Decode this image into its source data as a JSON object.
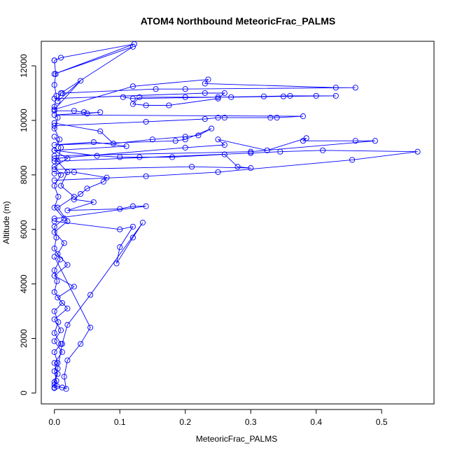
{
  "chart_data": {
    "type": "line",
    "title": "ATOM4 Northbound MeteoricFrac_PALMS",
    "xlabel": "MeteoricFrac_PALMS",
    "ylabel": "Altitude (m)",
    "xlim": [
      -0.02,
      0.58
    ],
    "ylim": [
      -400,
      12900
    ],
    "xticks": [
      0.0,
      0.1,
      0.2,
      0.3,
      0.4,
      0.5
    ],
    "xtick_labels": [
      "0.0",
      "0.1",
      "0.2",
      "0.3",
      "0.4",
      "0.5"
    ],
    "yticks": [
      0,
      2000,
      4000,
      6000,
      8000,
      10000,
      12000
    ],
    "ytick_labels": [
      "0",
      "2000",
      "4000",
      "6000",
      "8000",
      "10000",
      "12000"
    ],
    "grid": false,
    "color": "#0000ff",
    "marker": "open-circle",
    "series": [
      {
        "points": [
          [
            0.0,
            200
          ],
          [
            0.003,
            450
          ],
          [
            0.0,
            800
          ],
          [
            0.005,
            1100
          ],
          [
            0.0,
            1500
          ],
          [
            0.01,
            1800
          ],
          [
            0.0,
            2200
          ],
          [
            0.006,
            2600
          ],
          [
            0.0,
            3000
          ],
          [
            0.012,
            3300
          ],
          [
            0.0,
            3700
          ],
          [
            0.004,
            4100
          ],
          [
            0.0,
            4500
          ],
          [
            0.009,
            4900
          ],
          [
            0.0,
            5300
          ],
          [
            0.003,
            5700
          ],
          [
            0.0,
            6100
          ],
          [
            0.015,
            6400
          ],
          [
            0.0,
            6800
          ],
          [
            0.006,
            7200
          ],
          [
            0.0,
            7600
          ],
          [
            0.01,
            8000
          ],
          [
            0.0,
            8300
          ],
          [
            0.02,
            8600
          ],
          [
            0.0,
            8900
          ],
          [
            0.008,
            9300
          ],
          [
            0.0,
            9700
          ],
          [
            0.005,
            10100
          ],
          [
            0.0,
            10500
          ],
          [
            0.003,
            10900
          ],
          [
            0.0,
            11300
          ],
          [
            0.002,
            11700
          ],
          [
            0.0,
            12200
          ]
        ]
      },
      {
        "points": [
          [
            0.0,
            12200
          ],
          [
            0.01,
            12300
          ],
          [
            0.122,
            12800
          ],
          [
            0.0,
            11700
          ],
          [
            0.12,
            12700
          ],
          [
            0.01,
            11000
          ],
          [
            0.005,
            10700
          ],
          [
            0.04,
            11450
          ],
          [
            0.0,
            10400
          ],
          [
            0.12,
            11250
          ],
          [
            0.235,
            11500
          ],
          [
            0.23,
            11350
          ],
          [
            0.43,
            11200
          ],
          [
            0.46,
            11200
          ],
          [
            0.2,
            11150
          ],
          [
            0.155,
            11150
          ],
          [
            0.012,
            11000
          ]
        ]
      },
      {
        "points": [
          [
            0.105,
            10850
          ],
          [
            0.12,
            10800
          ],
          [
            0.25,
            10850
          ],
          [
            0.32,
            10880
          ],
          [
            0.36,
            10900
          ],
          [
            0.4,
            10900
          ],
          [
            0.43,
            10900
          ],
          [
            0.35,
            10880
          ],
          [
            0.27,
            10850
          ],
          [
            0.2,
            10850
          ],
          [
            0.13,
            10850
          ],
          [
            0.12,
            10600
          ],
          [
            0.14,
            10550
          ],
          [
            0.175,
            10550
          ],
          [
            0.25,
            10800
          ],
          [
            0.26,
            11000
          ],
          [
            0.23,
            11000
          ],
          [
            0.0,
            10800
          ]
        ]
      },
      {
        "points": [
          [
            0.0,
            10350
          ],
          [
            0.03,
            10350
          ],
          [
            0.045,
            10300
          ],
          [
            0.05,
            10250
          ],
          [
            0.07,
            10300
          ],
          [
            0.0,
            10200
          ],
          [
            0.38,
            10150
          ],
          [
            0.34,
            10100
          ],
          [
            0.33,
            10100
          ],
          [
            0.26,
            10100
          ],
          [
            0.25,
            10100
          ],
          [
            0.23,
            10050
          ],
          [
            0.14,
            9950
          ],
          [
            0.0,
            9800
          ]
        ]
      },
      {
        "points": [
          [
            0.0,
            9900
          ],
          [
            0.07,
            9600
          ],
          [
            0.09,
            9150
          ],
          [
            0.15,
            9300
          ],
          [
            0.2,
            9400
          ],
          [
            0.22,
            9450
          ],
          [
            0.24,
            9700
          ],
          [
            0.2,
            9300
          ],
          [
            0.185,
            9250
          ],
          [
            0.0,
            9100
          ],
          [
            0.06,
            9200
          ],
          [
            0.11,
            9050
          ],
          [
            0.0,
            8900
          ],
          [
            0.065,
            8700
          ],
          [
            0.1,
            8650
          ],
          [
            0.13,
            8650
          ],
          [
            0.18,
            8650
          ],
          [
            0.26,
            8750
          ],
          [
            0.28,
            8300
          ],
          [
            0.3,
            8250
          ],
          [
            0.21,
            8300
          ],
          [
            0.0,
            8200
          ]
        ]
      },
      {
        "points": [
          [
            0.0,
            8600
          ],
          [
            0.2,
            9000
          ],
          [
            0.26,
            9100
          ],
          [
            0.25,
            9300
          ],
          [
            0.325,
            8900
          ],
          [
            0.385,
            9350
          ],
          [
            0.38,
            9250
          ],
          [
            0.46,
            9250
          ],
          [
            0.49,
            9250
          ],
          [
            0.3,
            8850
          ],
          [
            0.0,
            8700
          ]
        ]
      },
      {
        "points": [
          [
            0.0,
            8500
          ],
          [
            0.3,
            8800
          ],
          [
            0.345,
            8850
          ],
          [
            0.41,
            8900
          ],
          [
            0.555,
            8850
          ],
          [
            0.455,
            8550
          ],
          [
            0.25,
            8100
          ],
          [
            0.14,
            7950
          ],
          [
            0.0,
            7800
          ]
        ]
      },
      {
        "points": [
          [
            0.0,
            8050
          ],
          [
            0.03,
            8100
          ],
          [
            0.08,
            7900
          ],
          [
            0.075,
            7750
          ],
          [
            0.05,
            7500
          ],
          [
            0.04,
            7300
          ],
          [
            0.03,
            7100
          ],
          [
            0.06,
            7000
          ],
          [
            0.02,
            6700
          ],
          [
            0.1,
            6750
          ],
          [
            0.12,
            6850
          ],
          [
            0.14,
            6850
          ],
          [
            0.0,
            6400
          ]
        ]
      },
      {
        "points": [
          [
            0.0,
            6300
          ],
          [
            0.1,
            6000
          ],
          [
            0.12,
            6100
          ],
          [
            0.1,
            5350
          ],
          [
            0.095,
            4750
          ],
          [
            0.12,
            5700
          ],
          [
            0.135,
            6250
          ],
          [
            0.055,
            3600
          ],
          [
            0.02,
            2500
          ],
          [
            0.012,
            1800
          ],
          [
            0.005,
            900
          ],
          [
            0.0,
            300
          ]
        ]
      },
      {
        "points": [
          [
            0.0,
            5000
          ],
          [
            0.055,
            2400
          ],
          [
            0.04,
            1800
          ],
          [
            0.02,
            1200
          ],
          [
            0.015,
            600
          ],
          [
            0.018,
            150
          ],
          [
            0.012,
            200
          ],
          [
            0.004,
            250
          ],
          [
            0.0,
            180
          ]
        ]
      },
      {
        "points": [
          [
            0.0,
            9400
          ],
          [
            0.01,
            9000
          ],
          [
            0.005,
            8500
          ],
          [
            0.02,
            8100
          ],
          [
            0.01,
            7600
          ],
          [
            0.03,
            7200
          ],
          [
            0.005,
            6800
          ],
          [
            0.02,
            6300
          ],
          [
            0.0,
            5900
          ],
          [
            0.015,
            5500
          ],
          [
            0.005,
            5100
          ],
          [
            0.02,
            4700
          ],
          [
            0.0,
            4300
          ],
          [
            0.03,
            3900
          ],
          [
            0.005,
            3500
          ],
          [
            0.02,
            3100
          ],
          [
            0.0,
            2700
          ],
          [
            0.01,
            2300
          ],
          [
            0.0,
            1900
          ],
          [
            0.012,
            1500
          ],
          [
            0.0,
            1100
          ],
          [
            0.005,
            700
          ],
          [
            0.0,
            400
          ]
        ]
      }
    ]
  }
}
